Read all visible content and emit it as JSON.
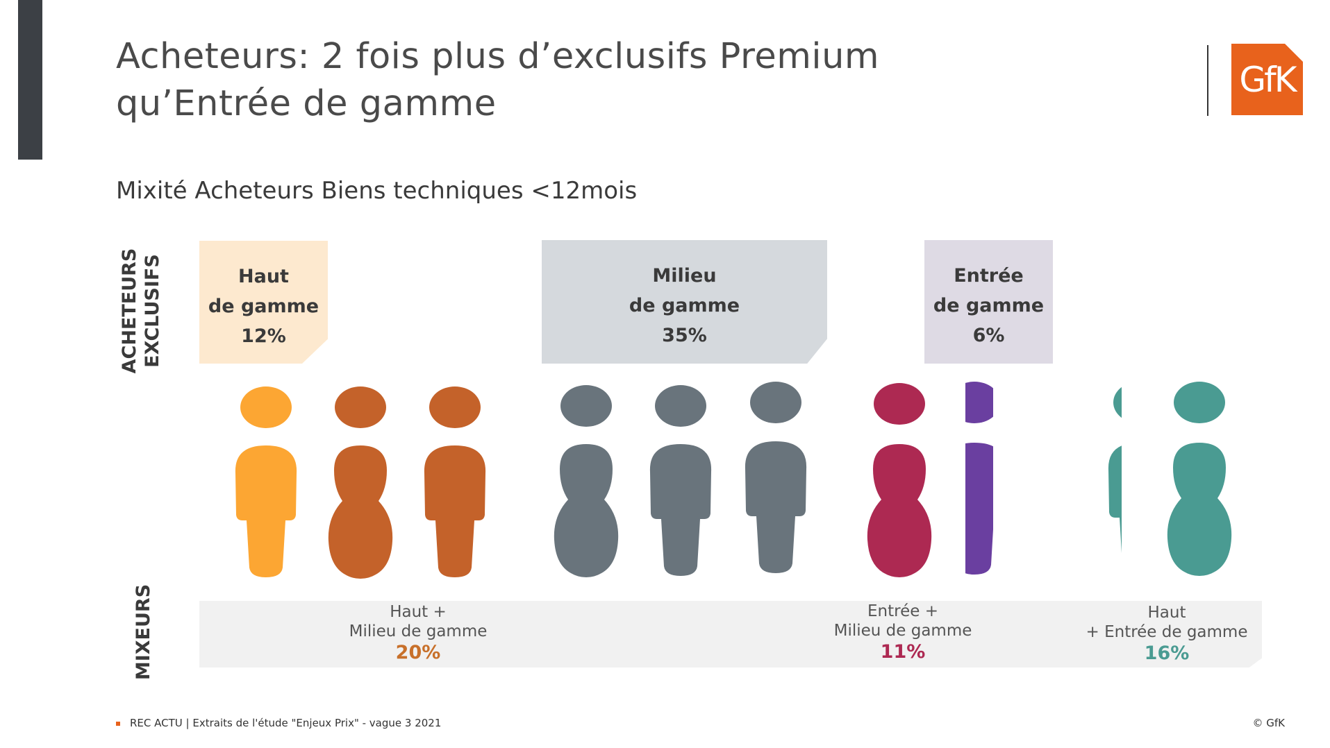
{
  "slide": {
    "title_line1": "Acheteurs: 2 fois plus d’exclusifs Premium",
    "title_line2": "qu’Entrée de gamme",
    "subtitle": "Mixité Acheteurs Biens techniques <12mois",
    "logo_text": "GfK",
    "footer": "REC ACTU | Extraits de l'étude \"Enjeux Prix\" - vague 3 2021",
    "copyright": "© GfK"
  },
  "labels": {
    "exclusive_line1": "ACHETEURS",
    "exclusive_line2": "EXCLUSIFS",
    "mixers": "MIXEURS"
  },
  "chart_data": {
    "type": "pictogram",
    "groups": [
      {
        "category": "exclusifs",
        "line1": "Haut",
        "line2": "de gamme",
        "value": 12,
        "label": "12%",
        "color": "#fca633",
        "figures": 1
      },
      {
        "category": "mixeurs",
        "line1": "Haut +",
        "line2": "Milieu de gamme",
        "value": 20,
        "label": "20%",
        "color": "#c4622a",
        "figures": 2
      },
      {
        "category": "exclusifs",
        "line1": "Milieu",
        "line2": "de gamme",
        "value": 35,
        "label": "35%",
        "color": "#69747c",
        "figures": 3
      },
      {
        "category": "mixeurs",
        "line1": "Entrée +",
        "line2": "Milieu de gamme",
        "value": 11,
        "label": "11%",
        "color": "#ad2952",
        "figures": 1
      },
      {
        "category": "exclusifs",
        "line1": "Entrée",
        "line2": "de gamme",
        "value": 6,
        "label": "6%",
        "color": "#6a3fa0",
        "figures": 0.5
      },
      {
        "category": "mixeurs",
        "line1": "Haut",
        "line2": "+ Entrée de gamme",
        "value": 16,
        "label": "16%",
        "color": "#4a9b92",
        "figures": 1.5
      }
    ]
  }
}
